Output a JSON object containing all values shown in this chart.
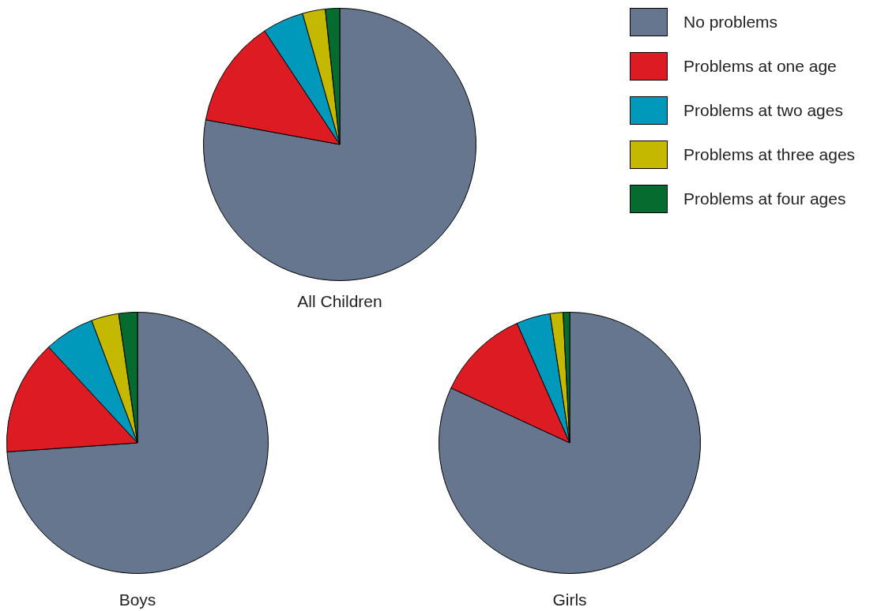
{
  "chart_data": [
    {
      "type": "pie",
      "title": "All Children",
      "categories": [
        "No problems",
        "Problems at one age",
        "Problems at two ages",
        "Problems at three ages",
        "Problems at four ages"
      ],
      "values": [
        77.9,
        12.8,
        4.9,
        2.7,
        1.7
      ],
      "colors": [
        "#67768f",
        "#dc1c22",
        "#0099bb",
        "#c4b800",
        "#056b2e"
      ],
      "legend": "top right"
    },
    {
      "type": "pie",
      "title": "Boys",
      "categories": [
        null,
        null,
        null,
        null,
        null
      ],
      "values": [
        73.9,
        14.2,
        6.2,
        3.4,
        2.3
      ],
      "colors": [
        "#67768f",
        "#dc1c22",
        "#0099bb",
        "#c4b800",
        "#056b2e"
      ]
    },
    {
      "type": "pie",
      "title": "Girls",
      "categories": [
        null,
        null,
        null,
        null,
        null
      ],
      "values": [
        81.9,
        11.5,
        4.2,
        1.6,
        0.8
      ],
      "colors": [
        "#67768f",
        "#dc1c22",
        "#0099bb",
        "#c4b800",
        "#056b2e"
      ]
    }
  ]
}
